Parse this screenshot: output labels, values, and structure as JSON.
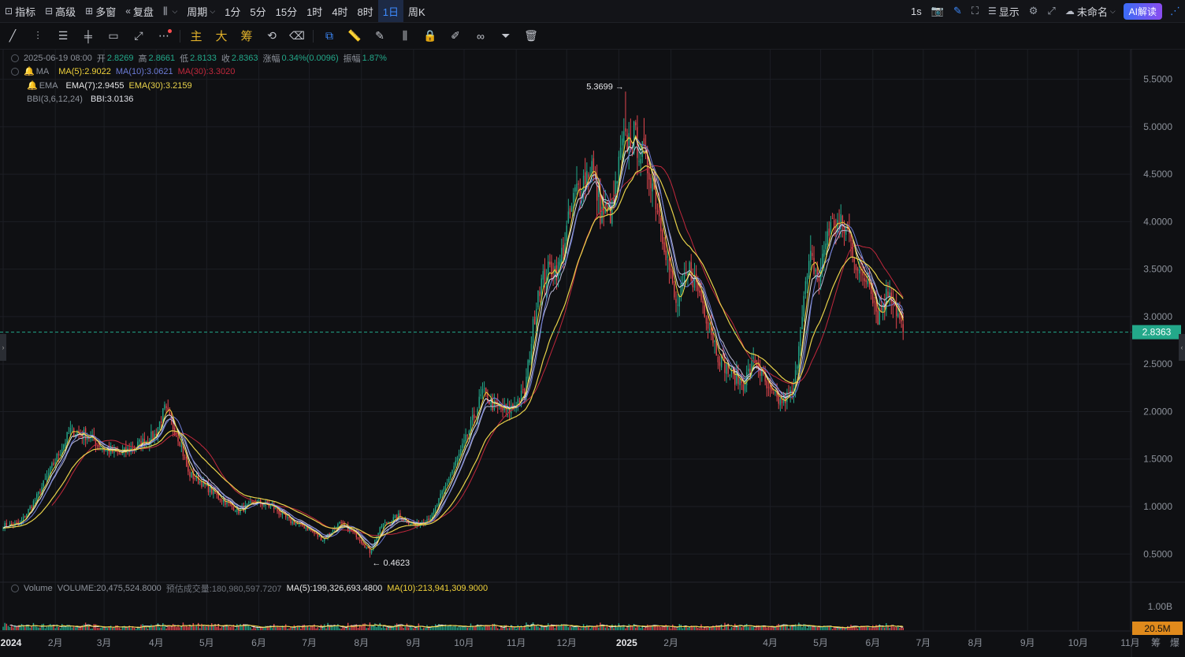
{
  "topbar": {
    "items": [
      {
        "icon": "indicator-icon",
        "glyph": "⊡",
        "label": "指标"
      },
      {
        "icon": "advanced-icon",
        "glyph": "⊟",
        "label": "高级"
      },
      {
        "icon": "multi-window-icon",
        "glyph": "⊞",
        "label": "多窗"
      },
      {
        "icon": "replay-icon",
        "glyph": "«",
        "label": "复盘"
      },
      {
        "icon": "candle-type-icon",
        "glyph": "⫼",
        "label": "",
        "caret": true
      },
      {
        "icon": "",
        "glyph": "",
        "label": "周期",
        "caret": true
      },
      {
        "label": "1分"
      },
      {
        "label": "5分"
      },
      {
        "label": "15分"
      },
      {
        "label": "1时"
      },
      {
        "label": "4时"
      },
      {
        "label": "8时"
      },
      {
        "label": "1日",
        "active": true
      },
      {
        "label": "周K"
      }
    ],
    "right": {
      "interval": "1s",
      "display": "显示",
      "unnamed": "未命名",
      "ai": "AI解读"
    }
  },
  "legend": {
    "ohlc": {
      "date": "2025-06-19 08:00",
      "open_label": "开",
      "open": "2.8269",
      "high_label": "高",
      "high": "2.8661",
      "low_label": "低",
      "low": "2.8133",
      "close_label": "收",
      "close": "2.8363",
      "change_label": "涨幅",
      "change": "0.34%(0.0096)",
      "amp_label": "振幅",
      "amp": "1.87%"
    },
    "ma": {
      "name": "MA",
      "ma5": "MA(5):2.9022",
      "ma10": "MA(10):3.0621",
      "ma30": "MA(30):3.3020"
    },
    "ema": {
      "name": "EMA",
      "ema7": "EMA(7):2.9455",
      "ema30": "EMA(30):3.2159"
    },
    "bbi": {
      "name": "BBI(3,6,12,24)",
      "value": "BBI:3.0136"
    },
    "volume": {
      "name": "Volume",
      "volume": "VOLUME:20,475,524.8000",
      "est": "预估成交量:180,980,597.7207",
      "ma5": "MA(5):199,326,693.4800",
      "ma10": "MA(10):213,941,309.9000"
    }
  },
  "colors": {
    "up": "#23a88a",
    "down": "#e2474e",
    "ma5": "#f0d23a",
    "ma10": "#6c7bd6",
    "ma30": "#c0283c",
    "ema7": "#e8e8e8",
    "ema30": "#e8d24a",
    "bbi": "#b9b9d6",
    "price_tag": "#23a88a",
    "vol_tag": "#e08a1c"
  },
  "chart_data": {
    "type": "candlestick",
    "y_ticks": [
      0.5,
      1.0,
      1.5,
      2.0,
      2.5,
      3.0,
      3.5,
      4.0,
      4.5,
      5.0,
      5.5
    ],
    "ylim": [
      0.22,
      5.82
    ],
    "x_ticks": [
      {
        "label": "2024",
        "bold": true,
        "day": 0
      },
      {
        "label": "2月",
        "day": 31
      },
      {
        "label": "3月",
        "day": 60
      },
      {
        "label": "4月",
        "day": 91
      },
      {
        "label": "5月",
        "day": 121
      },
      {
        "label": "6月",
        "day": 152
      },
      {
        "label": "7月",
        "day": 182
      },
      {
        "label": "8月",
        "day": 213
      },
      {
        "label": "9月",
        "day": 244
      },
      {
        "label": "10月",
        "day": 274
      },
      {
        "label": "11月",
        "day": 305
      },
      {
        "label": "12月",
        "day": 335
      },
      {
        "label": "2025",
        "bold": true,
        "day": 366
      },
      {
        "label": "2月",
        "day": 397
      },
      {
        "label": "4月",
        "day": 456
      },
      {
        "label": "5月",
        "day": 486
      },
      {
        "label": "6月",
        "day": 517
      },
      {
        "label": "7月",
        "day": 547
      },
      {
        "label": "8月",
        "day": 578
      },
      {
        "label": "9月",
        "day": 609
      },
      {
        "label": "10月",
        "day": 639
      },
      {
        "label": "11月",
        "day": 670
      }
    ],
    "last_day": 535,
    "close_anchors": [
      [
        0,
        0.8
      ],
      [
        10,
        0.82
      ],
      [
        20,
        1.1
      ],
      [
        30,
        1.45
      ],
      [
        40,
        1.8
      ],
      [
        50,
        1.75
      ],
      [
        60,
        1.6
      ],
      [
        70,
        1.55
      ],
      [
        80,
        1.65
      ],
      [
        90,
        1.75
      ],
      [
        96,
        2.02
      ],
      [
        105,
        1.7
      ],
      [
        110,
        1.35
      ],
      [
        118,
        1.25
      ],
      [
        128,
        1.1
      ],
      [
        140,
        0.95
      ],
      [
        150,
        1.05
      ],
      [
        160,
        1.0
      ],
      [
        170,
        0.85
      ],
      [
        180,
        0.78
      ],
      [
        190,
        0.65
      ],
      [
        200,
        0.82
      ],
      [
        210,
        0.7
      ],
      [
        218,
        0.52
      ],
      [
        225,
        0.8
      ],
      [
        235,
        0.9
      ],
      [
        245,
        0.8
      ],
      [
        255,
        0.9
      ],
      [
        265,
        1.3
      ],
      [
        275,
        1.7
      ],
      [
        285,
        2.2
      ],
      [
        292,
        2.05
      ],
      [
        300,
        2.0
      ],
      [
        310,
        2.2
      ],
      [
        318,
        3.3
      ],
      [
        325,
        3.5
      ],
      [
        330,
        3.5
      ],
      [
        340,
        4.3
      ],
      [
        350,
        4.6
      ],
      [
        355,
        4.1
      ],
      [
        362,
        4.1
      ],
      [
        368,
        4.8
      ],
      [
        375,
        4.9
      ],
      [
        385,
        4.5
      ],
      [
        393,
        3.8
      ],
      [
        400,
        3.1
      ],
      [
        408,
        3.5
      ],
      [
        415,
        3.2
      ],
      [
        425,
        2.6
      ],
      [
        432,
        2.4
      ],
      [
        440,
        2.3
      ],
      [
        447,
        2.55
      ],
      [
        455,
        2.2
      ],
      [
        462,
        2.1
      ],
      [
        470,
        2.2
      ],
      [
        475,
        3.1
      ],
      [
        480,
        3.6
      ],
      [
        485,
        3.4
      ],
      [
        490,
        3.9
      ],
      [
        495,
        4.0
      ],
      [
        502,
        3.9
      ],
      [
        510,
        3.4
      ],
      [
        515,
        3.4
      ],
      [
        520,
        3.0
      ],
      [
        527,
        3.3
      ],
      [
        535,
        2.84
      ]
    ],
    "markers": {
      "high": {
        "label": "5.3699",
        "day": 370,
        "value": 5.3699
      },
      "low": {
        "label": "0.4623",
        "day": 218,
        "value": 0.4623
      }
    },
    "current_price": "2.8363",
    "current_value": 2.8363,
    "volume_axis": {
      "tick": "1.00B",
      "tick_value": 1000000000,
      "current": "20.5M",
      "current_value": 20475524.8
    }
  },
  "right_edge_labels": {
    "a": "筹",
    "b": "爆"
  }
}
